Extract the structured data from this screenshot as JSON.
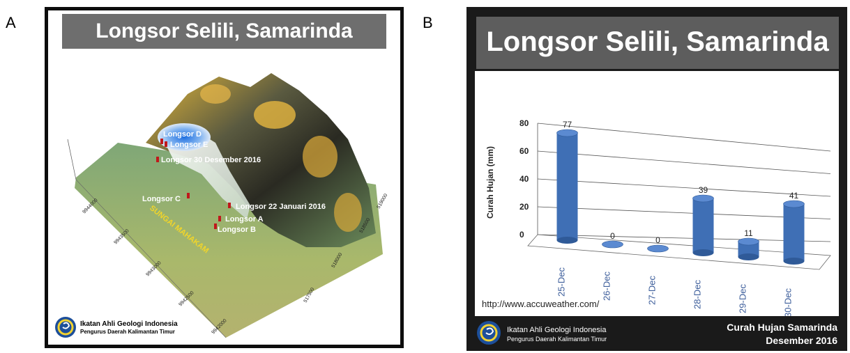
{
  "panels": {
    "a_label": "A",
    "b_label": "B"
  },
  "panel_a": {
    "title": "Longsor Selili, Samarinda",
    "river_label": "SUNGAI MAHAKAM",
    "landslides": [
      {
        "label": "Longsor D"
      },
      {
        "label": "Longsor E"
      },
      {
        "label": "Longsor 30 Desember 2016"
      },
      {
        "label": "Longsor C"
      },
      {
        "label": "Longsor 22 Januari 2016"
      },
      {
        "label": "Longsor A"
      },
      {
        "label": "Longsor B"
      }
    ],
    "northing_ticks": [
      "9944000",
      "9943500",
      "9943000",
      "9942500",
      "9942000"
    ],
    "easting_ticks": [
      "519000",
      "518500",
      "518000",
      "517500"
    ],
    "org_name": "Ikatan Ahli Geologi Indonesia",
    "org_sub": "Pengurus Daerah Kalimantan Timur"
  },
  "panel_b": {
    "title": "Longsor Selili, Samarinda",
    "source": "http://www.accuweather.com/",
    "org_name": "Ikatan Ahli Geologi Indonesia",
    "org_sub": "Pengurus Daerah Kalimantan Timur",
    "caption_line1": "Curah Hujan Samarinda",
    "caption_line2": "Desember 2016"
  },
  "chart_data": {
    "type": "bar",
    "categories": [
      "25-Dec",
      "26-Dec",
      "27-Dec",
      "28-Dec",
      "29-Dec",
      "30-Dec"
    ],
    "values": [
      77,
      0,
      0,
      39,
      11,
      41
    ],
    "ylabel": "Curah Hujan (mm)",
    "yticks": [
      0,
      20,
      40,
      60,
      80
    ],
    "ylim": [
      0,
      80
    ],
    "grid": true,
    "bar_color": "#3f6fb5"
  }
}
